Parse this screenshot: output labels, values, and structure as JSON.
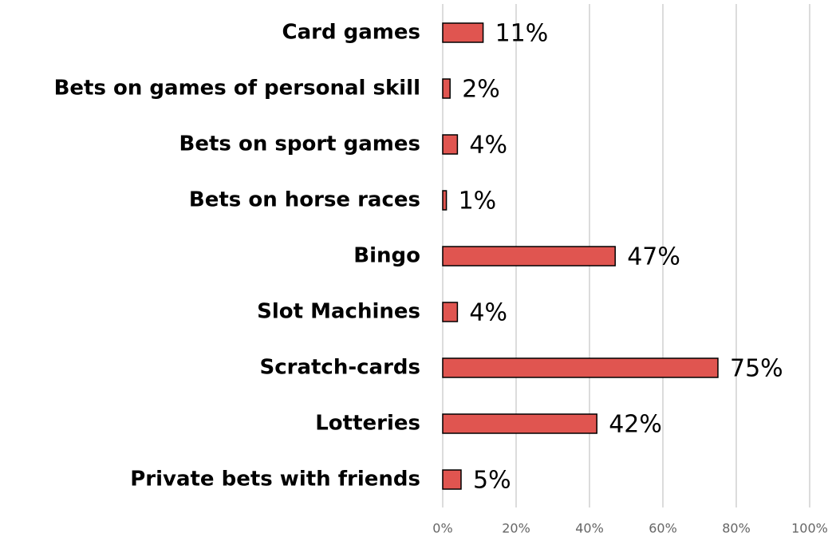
{
  "chart_data": {
    "type": "bar",
    "orientation": "horizontal",
    "categories": [
      "Card games",
      "Bets on games of personal skill",
      "Bets on sport games",
      "Bets on horse races",
      "Bingo",
      "Slot Machines",
      "Scratch-cards",
      "Lotteries",
      "Private bets with friends"
    ],
    "values": [
      11,
      2,
      4,
      1,
      47,
      4,
      75,
      42,
      5
    ],
    "value_labels": [
      "11%",
      "2%",
      "4%",
      "1%",
      "47%",
      "4%",
      "75%",
      "42%",
      "5%"
    ],
    "color": "#e05550",
    "xlim": [
      0,
      100
    ],
    "xticks": [
      {
        "value": 0,
        "label": "0%"
      },
      {
        "value": 20,
        "label": "20%"
      },
      {
        "value": 40,
        "label": "40%"
      },
      {
        "value": 60,
        "label": "60%"
      },
      {
        "value": 80,
        "label": "80%"
      },
      {
        "value": 100,
        "label": "100%"
      }
    ],
    "grid": true
  }
}
